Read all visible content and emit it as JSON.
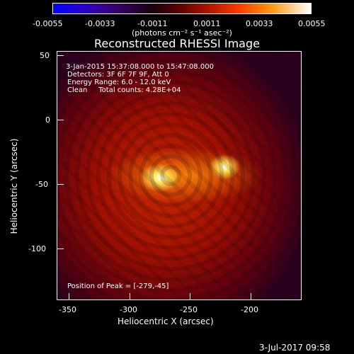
{
  "colorbar": {
    "gradient_colors": [
      "#0000ff",
      "#3a0080",
      "#1a0010",
      "#b01200",
      "#ff3a00",
      "#ff9a10",
      "#ffffff"
    ],
    "tick_labels": [
      "-0.0055",
      "-0.0033",
      "-0.0011",
      "0.0011",
      "0.0033",
      "0.0055"
    ],
    "units": "(photons cm⁻² s⁻¹ asec⁻²)"
  },
  "plot": {
    "title": "Reconstructed RHESSI Image",
    "annotations": {
      "time_range": "3-Jan-2015 15:37:08.000 to 15:47:08.000",
      "detectors": "Detectors: 3F 6F 7F 9F, Att 0",
      "energy_range": "Energy Range: 6.0 - 12.0 keV",
      "method_counts": "Clean     Total counts: 4.28E+04",
      "peak_position": "Position of Peak = [-279,-45]"
    },
    "x_axis": {
      "label": "Heliocentric X (arcsec)",
      "tick_labels": [
        "-350",
        "-300",
        "-250",
        "-200"
      ]
    },
    "y_axis": {
      "label": "Heliocentric Y (arcsec)",
      "tick_labels": [
        "50",
        "0",
        "-50",
        "-100"
      ]
    }
  },
  "footer": {
    "date_stamp": "3-Jul-2017 09:58"
  }
}
